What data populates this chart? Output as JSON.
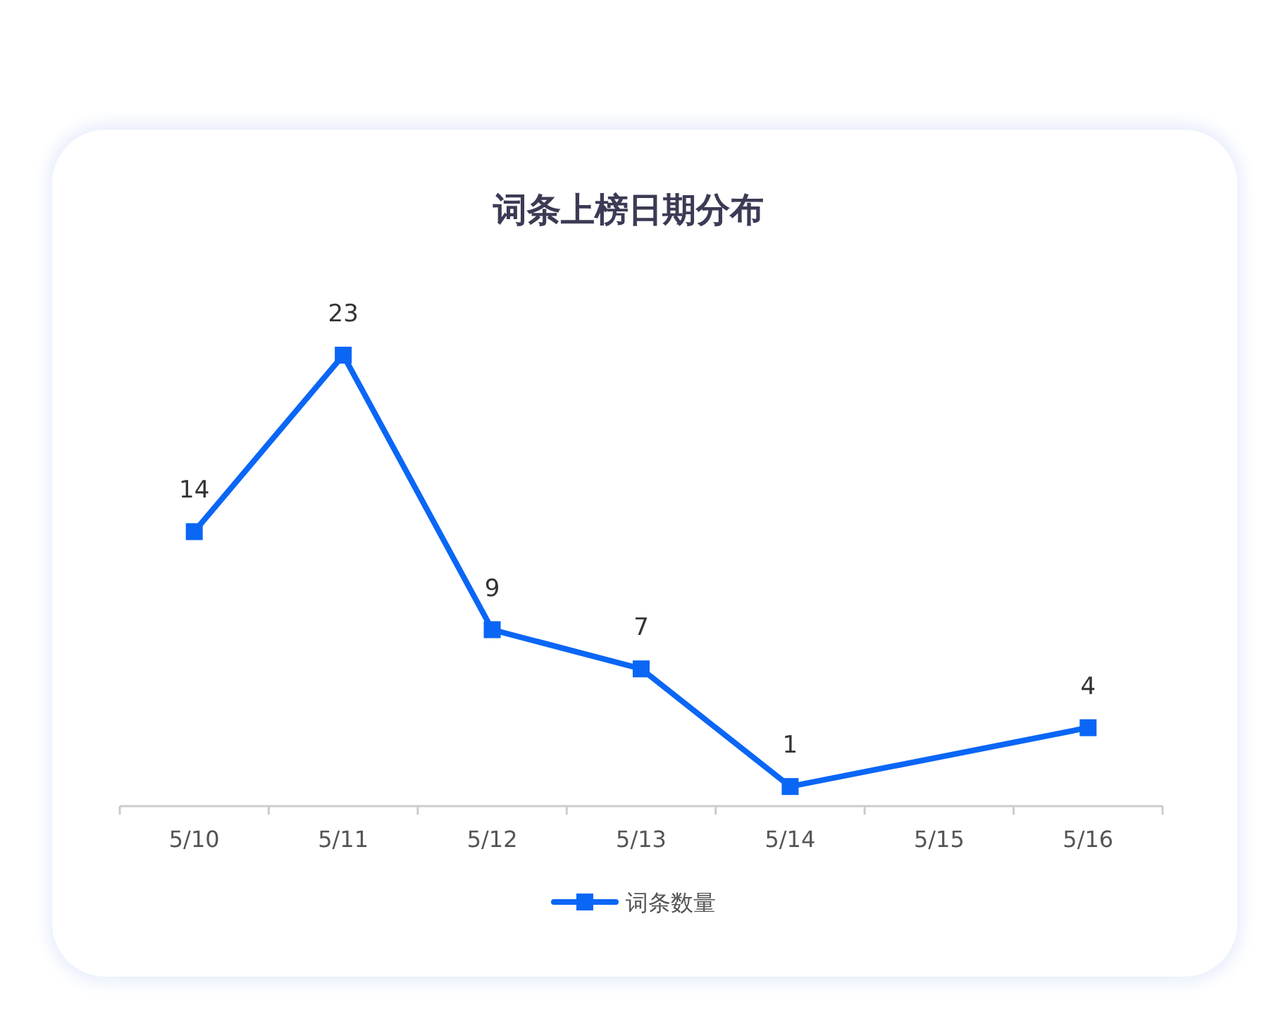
{
  "chart_data": {
    "type": "line",
    "title": "词条上榜日期分布",
    "categories": [
      "5/10",
      "5/11",
      "5/12",
      "5/13",
      "5/14",
      "5/15",
      "5/16"
    ],
    "series": [
      {
        "name": "词条数量",
        "color": "#0a66f5",
        "values": [
          14,
          23,
          9,
          7,
          1,
          null,
          4
        ]
      }
    ],
    "data_labels": true,
    "marker": "square",
    "line_style": "solid",
    "legend": "bottom"
  }
}
